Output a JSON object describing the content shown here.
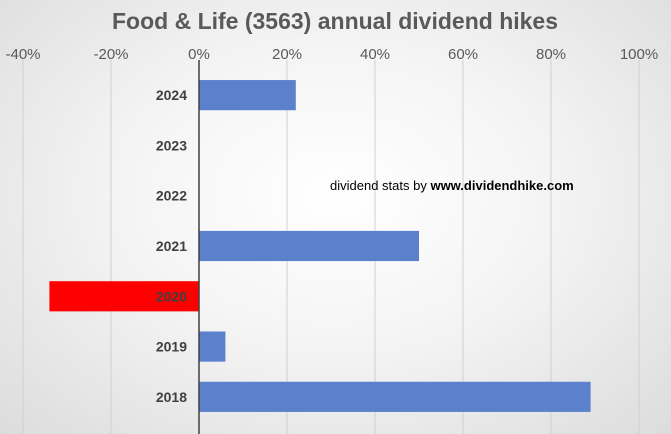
{
  "chart_data": {
    "type": "bar",
    "orientation": "horizontal",
    "title": "Food & Life (3563) annual dividend hikes",
    "categories": [
      "2024",
      "2023",
      "2022",
      "2021",
      "2020",
      "2019",
      "2018"
    ],
    "values": [
      22,
      0,
      0,
      50,
      -34,
      6,
      89
    ],
    "unit": "%",
    "xlim": [
      -40,
      100
    ],
    "xticks": [
      -40,
      -20,
      0,
      20,
      40,
      60,
      80,
      100
    ],
    "xtick_labels": [
      "-40%",
      "-20%",
      "0%",
      "20%",
      "40%",
      "60%",
      "80%",
      "100%"
    ],
    "xaxis_position": "top",
    "grid": true,
    "legend": "none",
    "colors": {
      "positive": "#5B80CC",
      "negative": "#FF0000",
      "grid": "#D0D0D0",
      "zero_axis": "#404040",
      "title": "#595959"
    },
    "annotation": {
      "prefix": "dividend stats by ",
      "bold": "www.dividendhike.com"
    }
  }
}
